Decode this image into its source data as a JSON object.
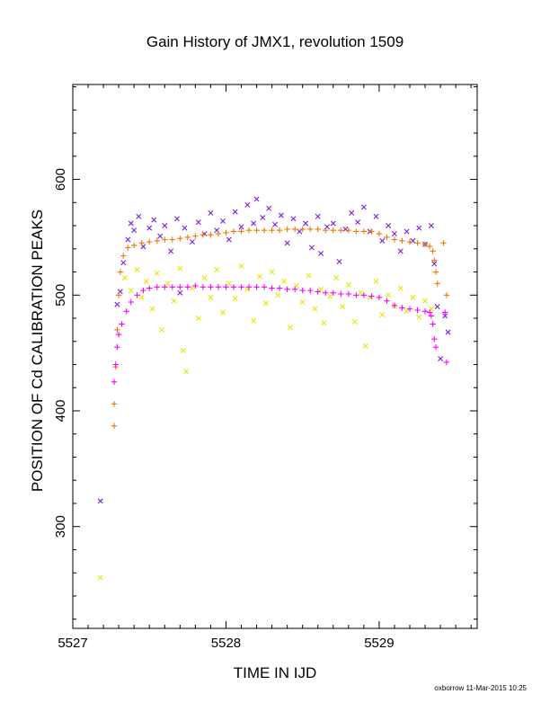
{
  "chart_data": {
    "type": "scatter",
    "title": "Gain History of JMX1, revolution 1509",
    "xlabel": "TIME IN IJD",
    "ylabel": "POSITION OF Cd CALIBRATION PEAKS",
    "xlim": [
      5527,
      5529.64
    ],
    "ylim": [
      212,
      682
    ],
    "x_ticks": [
      5527,
      5528,
      5529
    ],
    "y_ticks": [
      300,
      400,
      500,
      600
    ],
    "grid": false,
    "legend": "none",
    "series": [
      {
        "marker": "x",
        "color": "#7a1fe0",
        "points": [
          [
            5527.18,
            322
          ],
          [
            5527.29,
            492
          ],
          [
            5527.31,
            503
          ],
          [
            5527.33,
            528
          ],
          [
            5527.36,
            548
          ],
          [
            5527.38,
            562
          ],
          [
            5527.4,
            556
          ],
          [
            5527.43,
            568
          ],
          [
            5527.46,
            542
          ],
          [
            5527.5,
            558
          ],
          [
            5527.53,
            565
          ],
          [
            5527.57,
            551
          ],
          [
            5527.6,
            560
          ],
          [
            5527.64,
            538
          ],
          [
            5527.68,
            566
          ],
          [
            5527.7,
            502
          ],
          [
            5527.73,
            558
          ],
          [
            5527.78,
            546
          ],
          [
            5527.82,
            563
          ],
          [
            5527.86,
            553
          ],
          [
            5527.9,
            571
          ],
          [
            5527.94,
            556
          ],
          [
            5527.98,
            564
          ],
          [
            5528.02,
            548
          ],
          [
            5528.06,
            572
          ],
          [
            5528.1,
            559
          ],
          [
            5528.14,
            578
          ],
          [
            5528.18,
            562
          ],
          [
            5528.2,
            583
          ],
          [
            5528.24,
            567
          ],
          [
            5528.28,
            575
          ],
          [
            5528.32,
            561
          ],
          [
            5528.36,
            569
          ],
          [
            5528.4,
            545
          ],
          [
            5528.44,
            566
          ],
          [
            5528.48,
            555
          ],
          [
            5528.52,
            562
          ],
          [
            5528.56,
            541
          ],
          [
            5528.6,
            568
          ],
          [
            5528.62,
            536
          ],
          [
            5528.66,
            559
          ],
          [
            5528.7,
            562
          ],
          [
            5528.74,
            529
          ],
          [
            5528.78,
            557
          ],
          [
            5528.82,
            571
          ],
          [
            5528.86,
            563
          ],
          [
            5528.9,
            576
          ],
          [
            5528.94,
            555
          ],
          [
            5528.98,
            568
          ],
          [
            5529.02,
            547
          ],
          [
            5529.06,
            560
          ],
          [
            5529.1,
            553
          ],
          [
            5529.14,
            538
          ],
          [
            5529.18,
            555
          ],
          [
            5529.22,
            547
          ],
          [
            5529.26,
            558
          ],
          [
            5529.3,
            544
          ],
          [
            5529.34,
            560
          ],
          [
            5529.36,
            527
          ],
          [
            5529.38,
            490
          ],
          [
            5529.4,
            445
          ],
          [
            5529.43,
            482
          ],
          [
            5529.45,
            468
          ]
        ]
      },
      {
        "marker": "x",
        "color": "#e8e800",
        "points": [
          [
            5527.18,
            256
          ],
          [
            5527.34,
            515
          ],
          [
            5527.38,
            504
          ],
          [
            5527.42,
            522
          ],
          [
            5527.45,
            498
          ],
          [
            5527.48,
            512
          ],
          [
            5527.52,
            488
          ],
          [
            5527.55,
            519
          ],
          [
            5527.58,
            470
          ],
          [
            5527.62,
            510
          ],
          [
            5527.66,
            495
          ],
          [
            5527.7,
            523
          ],
          [
            5527.72,
            452
          ],
          [
            5527.74,
            434
          ],
          [
            5527.78,
            506
          ],
          [
            5527.82,
            480
          ],
          [
            5527.86,
            515
          ],
          [
            5527.9,
            498
          ],
          [
            5527.94,
            522
          ],
          [
            5527.98,
            485
          ],
          [
            5528.02,
            510
          ],
          [
            5528.06,
            497
          ],
          [
            5528.1,
            525
          ],
          [
            5528.14,
            505
          ],
          [
            5528.18,
            478
          ],
          [
            5528.22,
            516
          ],
          [
            5528.26,
            493
          ],
          [
            5528.3,
            520
          ],
          [
            5528.34,
            500
          ],
          [
            5528.38,
            512
          ],
          [
            5528.42,
            472
          ],
          [
            5528.46,
            508
          ],
          [
            5528.5,
            494
          ],
          [
            5528.54,
            517
          ],
          [
            5528.58,
            488
          ],
          [
            5528.62,
            505
          ],
          [
            5528.64,
            476
          ],
          [
            5528.68,
            499
          ],
          [
            5528.72,
            515
          ],
          [
            5528.76,
            490
          ],
          [
            5528.8,
            509
          ],
          [
            5528.84,
            477
          ],
          [
            5528.88,
            502
          ],
          [
            5528.91,
            456
          ],
          [
            5528.94,
            498
          ],
          [
            5528.98,
            512
          ],
          [
            5529.02,
            483
          ],
          [
            5529.06,
            500
          ],
          [
            5529.1,
            491
          ],
          [
            5529.14,
            506
          ],
          [
            5529.18,
            486
          ],
          [
            5529.22,
            498
          ],
          [
            5529.26,
            481
          ],
          [
            5529.3,
            495
          ],
          [
            5529.34,
            488
          ]
        ]
      },
      {
        "marker": "+",
        "color": "#f07800",
        "points": [
          [
            5527.27,
            387
          ],
          [
            5527.27,
            406
          ],
          [
            5527.28,
            438
          ],
          [
            5527.29,
            470
          ],
          [
            5527.3,
            500
          ],
          [
            5527.31,
            520
          ],
          [
            5527.33,
            534
          ],
          [
            5527.36,
            541
          ],
          [
            5527.4,
            543
          ],
          [
            5527.45,
            545
          ],
          [
            5527.5,
            546
          ],
          [
            5527.55,
            547
          ],
          [
            5527.6,
            548
          ],
          [
            5527.65,
            548
          ],
          [
            5527.7,
            549
          ],
          [
            5527.75,
            550
          ],
          [
            5527.8,
            551
          ],
          [
            5527.85,
            552
          ],
          [
            5527.9,
            552
          ],
          [
            5527.95,
            553
          ],
          [
            5528.0,
            554
          ],
          [
            5528.05,
            555
          ],
          [
            5528.1,
            555
          ],
          [
            5528.15,
            556
          ],
          [
            5528.2,
            556
          ],
          [
            5528.25,
            556
          ],
          [
            5528.3,
            556
          ],
          [
            5528.35,
            556
          ],
          [
            5528.4,
            557
          ],
          [
            5528.45,
            557
          ],
          [
            5528.5,
            557
          ],
          [
            5528.55,
            557
          ],
          [
            5528.6,
            557
          ],
          [
            5528.65,
            556
          ],
          [
            5528.7,
            556
          ],
          [
            5528.75,
            556
          ],
          [
            5528.8,
            556
          ],
          [
            5528.85,
            555
          ],
          [
            5528.9,
            555
          ],
          [
            5528.95,
            555
          ],
          [
            5529.0,
            553
          ],
          [
            5529.05,
            550
          ],
          [
            5529.1,
            548
          ],
          [
            5529.15,
            547
          ],
          [
            5529.2,
            546
          ],
          [
            5529.25,
            545
          ],
          [
            5529.3,
            544
          ],
          [
            5529.33,
            542
          ],
          [
            5529.35,
            538
          ],
          [
            5529.36,
            530
          ],
          [
            5529.37,
            520
          ],
          [
            5529.38,
            510
          ],
          [
            5529.42,
            545
          ],
          [
            5529.44,
            500
          ]
        ]
      },
      {
        "marker": "+",
        "color": "#ff00ff",
        "points": [
          [
            5527.27,
            425
          ],
          [
            5527.28,
            440
          ],
          [
            5527.29,
            455
          ],
          [
            5527.3,
            466
          ],
          [
            5527.32,
            475
          ],
          [
            5527.35,
            486
          ],
          [
            5527.38,
            494
          ],
          [
            5527.42,
            500
          ],
          [
            5527.46,
            504
          ],
          [
            5527.5,
            506
          ],
          [
            5527.55,
            507
          ],
          [
            5527.6,
            507
          ],
          [
            5527.65,
            507
          ],
          [
            5527.7,
            507
          ],
          [
            5527.75,
            507
          ],
          [
            5527.8,
            508
          ],
          [
            5527.85,
            507
          ],
          [
            5527.9,
            507
          ],
          [
            5527.95,
            507
          ],
          [
            5528.0,
            507
          ],
          [
            5528.05,
            507
          ],
          [
            5528.1,
            507
          ],
          [
            5528.15,
            507
          ],
          [
            5528.2,
            507
          ],
          [
            5528.25,
            507
          ],
          [
            5528.3,
            506
          ],
          [
            5528.35,
            506
          ],
          [
            5528.4,
            505
          ],
          [
            5528.45,
            505
          ],
          [
            5528.5,
            504
          ],
          [
            5528.55,
            504
          ],
          [
            5528.6,
            503
          ],
          [
            5528.65,
            502
          ],
          [
            5528.7,
            502
          ],
          [
            5528.75,
            501
          ],
          [
            5528.8,
            501
          ],
          [
            5528.85,
            500
          ],
          [
            5528.9,
            500
          ],
          [
            5528.95,
            499
          ],
          [
            5529.0,
            498
          ],
          [
            5529.05,
            495
          ],
          [
            5529.1,
            491
          ],
          [
            5529.15,
            489
          ],
          [
            5529.2,
            488
          ],
          [
            5529.25,
            487
          ],
          [
            5529.3,
            486
          ],
          [
            5529.33,
            485
          ],
          [
            5529.34,
            482
          ],
          [
            5529.35,
            475
          ],
          [
            5529.36,
            462
          ],
          [
            5529.37,
            455
          ],
          [
            5529.43,
            485
          ],
          [
            5529.44,
            442
          ]
        ]
      }
    ]
  },
  "footer": {
    "stamp": "oxborrow 11-Mar-2015 10:25"
  }
}
